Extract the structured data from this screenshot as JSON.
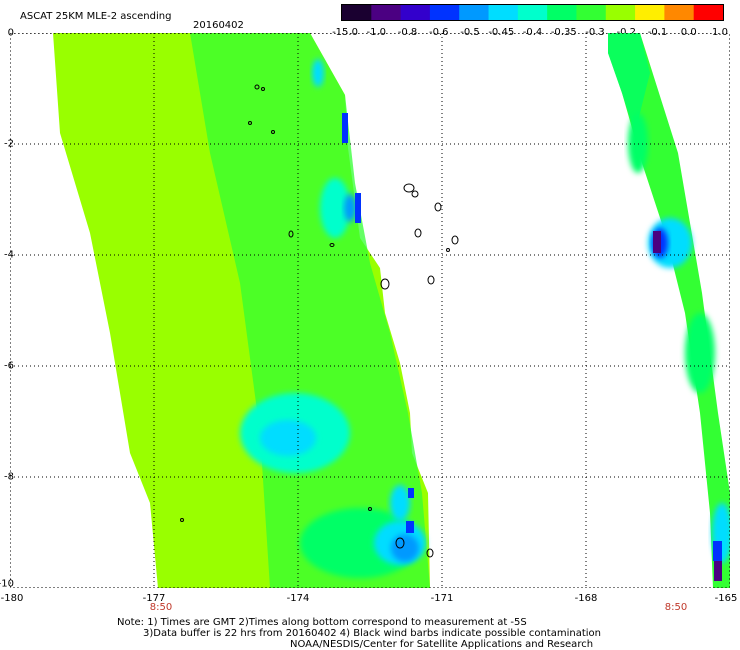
{
  "header": {
    "title": "ASCAT 25KM MLE-2 ascending",
    "date": "20160402"
  },
  "colorbar": {
    "labels": [
      "-15.0",
      "-1.0",
      "-0.8",
      "-0.6",
      "-0.5",
      "-0.45",
      "-0.4",
      "-0.35",
      "-0.3",
      "-0.2",
      "-0.1",
      "0.0",
      "1.0"
    ],
    "colors": [
      "#1a0030",
      "#4b0082",
      "#3300cc",
      "#0033ff",
      "#0099ff",
      "#00ddff",
      "#00ffcc",
      "#00ff66",
      "#33ff33",
      "#99ff00",
      "#ffee00",
      "#ff8800",
      "#ff0000"
    ]
  },
  "axes": {
    "y_labels": [
      "0",
      "-2",
      "-4",
      "-6",
      "-8",
      "-10"
    ],
    "x_labels": [
      "-180",
      "-177",
      "-174",
      "-171",
      "-168",
      "-165"
    ],
    "time_labels": [
      "8:50",
      "8:50"
    ]
  },
  "footer": {
    "note_line1": "Note: 1) Times are GMT 2)Times along bottom correspond to measurement at -5S",
    "note_line2": "3)Data buffer is 22 hrs from 20160402 4) Black wind barbs indicate possible contamination",
    "note_line3": "NOAA/NESDIS/Center for Satellite Applications and Research"
  },
  "palette": {
    "lime": "#99ff00",
    "green": "#33ff33",
    "mint": "#00ff66",
    "cyan": "#00ffcc",
    "aqua": "#00ddff",
    "sky": "#0099ff",
    "blue": "#0033ff",
    "indigo": "#3300cc",
    "violet": "#4b0082"
  }
}
